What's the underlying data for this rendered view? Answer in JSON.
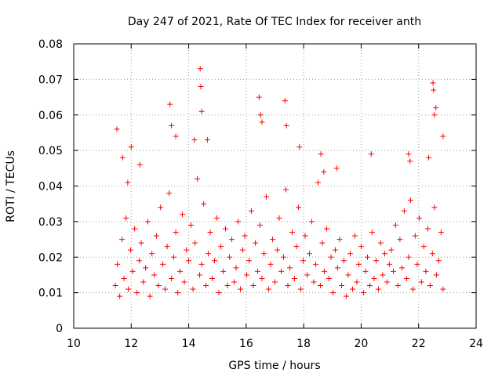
{
  "chart_data": {
    "type": "scatter",
    "title": "Day 247 of 2021, Rate Of TEC Index for receiver anth",
    "xlabel": "GPS time / hours",
    "ylabel": "ROTI / TECUs",
    "xlim": [
      10,
      24
    ],
    "ylim": [
      0,
      0.08
    ],
    "x_ticks": [
      "10",
      "12",
      "14",
      "16",
      "18",
      "20",
      "22",
      "24"
    ],
    "y_ticks": [
      "0",
      "0.01",
      "0.02",
      "0.03",
      "0.04",
      "0.05",
      "0.06",
      "0.07",
      "0.08"
    ],
    "grid": true,
    "marker": "plus",
    "color": "#ff0000",
    "series": [
      {
        "name": "",
        "x": [
          11.45,
          11.52,
          11.6,
          11.68,
          11.75,
          11.82,
          11.9,
          11.98,
          12.05,
          12.12,
          12.2,
          12.28,
          12.35,
          12.42,
          12.5,
          12.58,
          12.65,
          12.72,
          12.8,
          12.88,
          12.95,
          13.02,
          13.1,
          13.18,
          13.25,
          13.32,
          13.4,
          13.48,
          13.55,
          13.62,
          13.7,
          13.78,
          13.85,
          13.92,
          14.0,
          14.08,
          14.15,
          14.22,
          14.3,
          14.38,
          14.45,
          14.52,
          14.6,
          14.68,
          14.75,
          14.82,
          14.9,
          14.98,
          15.05,
          15.12,
          15.2,
          15.28,
          15.35,
          15.42,
          15.5,
          15.58,
          15.65,
          15.72,
          15.8,
          15.88,
          15.95,
          16.02,
          16.1,
          16.18,
          16.25,
          16.32,
          16.4,
          16.48,
          16.55,
          16.62,
          16.7,
          16.78,
          16.85,
          16.92,
          17.0,
          17.08,
          17.15,
          17.22,
          17.3,
          17.38,
          17.45,
          17.52,
          17.6,
          17.68,
          17.75,
          17.82,
          17.9,
          17.98,
          18.05,
          18.12,
          18.2,
          18.28,
          18.35,
          18.42,
          18.5,
          18.58,
          18.65,
          18.72,
          18.8,
          18.88,
          18.95,
          19.02,
          19.1,
          19.18,
          19.25,
          19.32,
          19.4,
          19.48,
          19.55,
          19.62,
          19.7,
          19.78,
          19.85,
          19.92,
          20.0,
          20.08,
          20.15,
          20.22,
          20.3,
          20.38,
          20.45,
          20.52,
          20.6,
          20.68,
          20.75,
          20.82,
          20.9,
          20.98,
          21.05,
          21.12,
          21.2,
          21.28,
          21.35,
          21.42,
          21.5,
          21.58,
          21.65,
          21.72,
          21.8,
          21.88,
          21.95,
          22.02,
          22.1,
          22.18,
          22.25,
          22.32,
          22.4,
          22.48,
          22.55,
          22.62,
          22.7,
          22.78,
          22.85,
          11.5,
          11.7,
          11.88,
          12.0,
          12.3,
          13.35,
          13.4,
          13.55,
          14.4,
          14.42,
          14.45,
          14.2,
          14.65,
          16.45,
          16.5,
          16.55,
          17.35,
          17.4,
          17.85,
          18.6,
          18.7,
          19.15,
          20.35,
          21.65,
          21.7,
          22.35,
          22.5,
          22.52,
          22.55,
          22.6,
          22.85
        ],
        "y": [
          0.012,
          0.018,
          0.009,
          0.025,
          0.014,
          0.031,
          0.011,
          0.022,
          0.016,
          0.028,
          0.01,
          0.019,
          0.024,
          0.013,
          0.017,
          0.03,
          0.009,
          0.021,
          0.015,
          0.026,
          0.012,
          0.034,
          0.018,
          0.011,
          0.023,
          0.038,
          0.014,
          0.02,
          0.027,
          0.01,
          0.016,
          0.032,
          0.013,
          0.022,
          0.019,
          0.029,
          0.011,
          0.024,
          0.042,
          0.015,
          0.018,
          0.035,
          0.012,
          0.021,
          0.027,
          0.014,
          0.019,
          0.031,
          0.01,
          0.023,
          0.016,
          0.028,
          0.012,
          0.02,
          0.025,
          0.013,
          0.017,
          0.03,
          0.011,
          0.022,
          0.026,
          0.015,
          0.019,
          0.033,
          0.012,
          0.024,
          0.016,
          0.029,
          0.014,
          0.021,
          0.037,
          0.011,
          0.018,
          0.025,
          0.013,
          0.022,
          0.031,
          0.016,
          0.02,
          0.039,
          0.012,
          0.017,
          0.027,
          0.014,
          0.023,
          0.034,
          0.011,
          0.019,
          0.026,
          0.015,
          0.021,
          0.03,
          0.013,
          0.018,
          0.041,
          0.012,
          0.024,
          0.016,
          0.028,
          0.014,
          0.02,
          0.01,
          0.022,
          0.017,
          0.025,
          0.012,
          0.019,
          0.009,
          0.015,
          0.021,
          0.011,
          0.026,
          0.013,
          0.018,
          0.023,
          0.01,
          0.016,
          0.02,
          0.012,
          0.027,
          0.014,
          0.019,
          0.011,
          0.024,
          0.015,
          0.021,
          0.013,
          0.018,
          0.022,
          0.016,
          0.029,
          0.012,
          0.025,
          0.017,
          0.033,
          0.014,
          0.02,
          0.036,
          0.011,
          0.026,
          0.018,
          0.031,
          0.013,
          0.023,
          0.016,
          0.028,
          0.012,
          0.021,
          0.034,
          0.015,
          0.019,
          0.027,
          0.011,
          0.056,
          0.048,
          0.041,
          0.051,
          0.046,
          0.063,
          0.057,
          0.054,
          0.073,
          0.068,
          0.061,
          0.053,
          0.053,
          0.065,
          0.06,
          0.058,
          0.064,
          0.057,
          0.051,
          0.049,
          0.044,
          0.045,
          0.049,
          0.049,
          0.047,
          0.048,
          0.069,
          0.067,
          0.06,
          0.062,
          0.054
        ]
      }
    ]
  }
}
